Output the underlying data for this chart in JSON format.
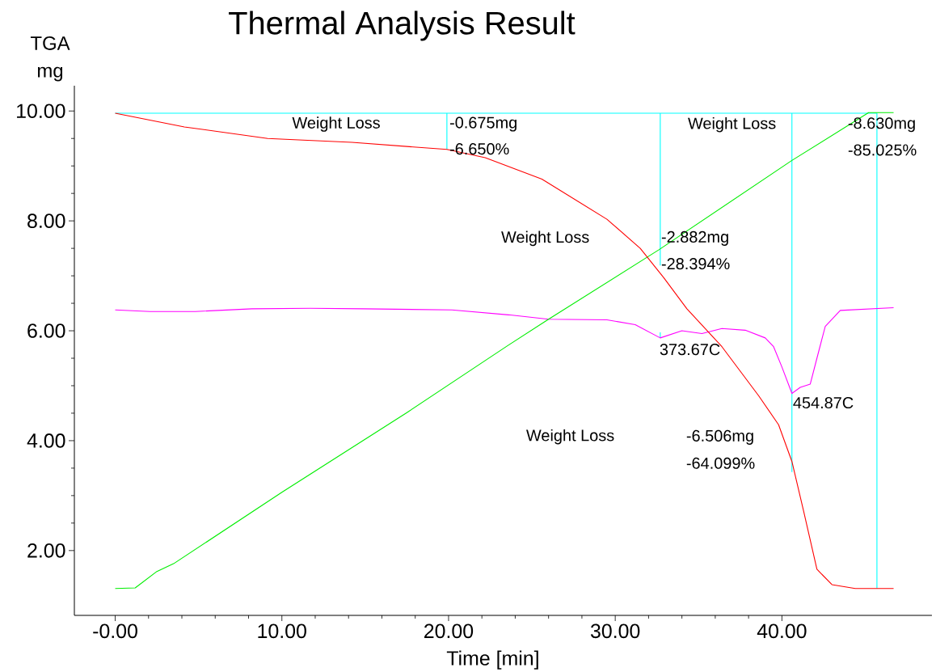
{
  "chart_data": {
    "type": "line",
    "title": "Thermal Analysis Result",
    "xlabel": "Time [min]",
    "ylabel": "TGA mg",
    "xlim": [
      -2.45,
      49.0
    ],
    "ylim": [
      0.82,
      10.46
    ],
    "xticks": [
      {
        "value": 0,
        "label": "-0.00"
      },
      {
        "value": 10,
        "label": "10.00"
      },
      {
        "value": 20,
        "label": "20.00"
      },
      {
        "value": 30,
        "label": "30.00"
      },
      {
        "value": 40,
        "label": "40.00"
      }
    ],
    "yticks": [
      {
        "value": 2,
        "label": "2.00"
      },
      {
        "value": 4,
        "label": "4.00"
      },
      {
        "value": 6,
        "label": "6.00"
      },
      {
        "value": 8,
        "label": "8.00"
      },
      {
        "value": 10,
        "label": "10.00"
      }
    ],
    "grid": false,
    "series": [
      {
        "color": "#00ffff",
        "x": [
          0,
          45.7
        ],
        "values": [
          9.96,
          9.96
        ]
      },
      {
        "color": "#00ffff",
        "x": [
          19.9,
          19.9
        ],
        "values": [
          9.96,
          9.3
        ]
      },
      {
        "color": "#00ffff",
        "x": [
          32.7,
          32.7
        ],
        "values": [
          9.96,
          7.19
        ]
      },
      {
        "color": "#00ffff",
        "x": [
          32.7,
          32.7
        ],
        "values": [
          5.97,
          5.87
        ]
      },
      {
        "color": "#00ffff",
        "x": [
          40.6,
          40.6
        ],
        "values": [
          9.96,
          3.43
        ]
      },
      {
        "color": "#00ffff",
        "x": [
          45.7,
          45.7
        ],
        "values": [
          9.96,
          1.31
        ]
      },
      {
        "color": "#ff00ff",
        "x": [
          0,
          2.1,
          4.8,
          8.2,
          11.7,
          14.9,
          20.2,
          23.6,
          26.0,
          29.5,
          31.2,
          32.7,
          34.0,
          35.2,
          36.4,
          37.8,
          39.0,
          39.5,
          40.0,
          40.6,
          41.1,
          41.7,
          42.1,
          42.6,
          43.5,
          46.7
        ],
        "values": [
          6.38,
          6.35,
          6.35,
          6.4,
          6.41,
          6.4,
          6.38,
          6.29,
          6.21,
          6.2,
          6.11,
          5.87,
          6.0,
          5.95,
          6.04,
          6.01,
          5.87,
          5.71,
          5.34,
          4.86,
          4.97,
          5.03,
          5.5,
          6.08,
          6.37,
          6.42
        ]
      },
      {
        "color": "#00ee00",
        "x": [
          0,
          1.2,
          2.5,
          3.5,
          10.0,
          17.5,
          23.55,
          26.0,
          32.6,
          40.6,
          45.2,
          46.7
        ],
        "values": [
          1.31,
          1.32,
          1.62,
          1.76,
          3.06,
          4.51,
          5.73,
          6.21,
          7.47,
          9.1,
          9.97,
          9.97
        ]
      },
      {
        "color": "#ff0000",
        "x": [
          0,
          4.15,
          9.15,
          14.2,
          19.9,
          22.2,
          25.6,
          29.5,
          31.5,
          32.9,
          34.3,
          36.4,
          38.6,
          39.8,
          40.6,
          41.3,
          42.1,
          43.0,
          44.4,
          46.7
        ],
        "values": [
          9.96,
          9.71,
          9.5,
          9.43,
          9.3,
          9.15,
          8.76,
          8.03,
          7.5,
          6.97,
          6.4,
          5.71,
          4.82,
          4.29,
          3.62,
          2.72,
          1.66,
          1.38,
          1.31,
          1.31
        ]
      }
    ],
    "annotations": [
      "Weight Loss",
      {
        "text": "-0.675mg",
        "x": 19.9,
        "y": 9.76
      },
      {
        "text": "-6.650%",
        "x": 19.9,
        "y": 9.31
      },
      "Weight Loss",
      {
        "text": "-2.882mg",
        "x": 32.6,
        "y": 7.68
      },
      {
        "text": "-28.394%",
        "x": 32.6,
        "y": 7.22
      },
      "Weight Loss",
      {
        "text": "-8.630mg",
        "x": 43.8,
        "y": 9.75
      },
      "-85.025%",
      "373.67C",
      {
        "text": "454.87C",
        "x": 40.5,
        "y": 4.69
      },
      "Weight Loss",
      "-6.506mg",
      "-64.099%"
    ]
  }
}
